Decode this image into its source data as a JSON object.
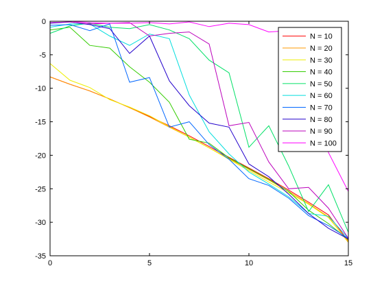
{
  "chart_data": {
    "type": "line",
    "title": "",
    "xlabel": "",
    "ylabel": "",
    "xlim": [
      0,
      15
    ],
    "ylim": [
      -35,
      0
    ],
    "xticks": [
      0,
      5,
      10,
      15
    ],
    "yticks": [
      0,
      -5,
      -10,
      -15,
      -20,
      -25,
      -30,
      -35
    ],
    "grid": false,
    "legend_position": "top-right",
    "x": [
      0,
      1,
      2,
      3,
      4,
      5,
      6,
      7,
      8,
      9,
      10,
      11,
      12,
      13,
      14,
      15
    ],
    "series": [
      {
        "name": "N = 10",
        "color": "#ff0000",
        "values": [
          -8.3,
          -9.4,
          -10.4,
          -11.6,
          -12.9,
          -14.2,
          -15.6,
          -17.1,
          -18.7,
          -20.3,
          -21.9,
          -23.5,
          -25.2,
          -27.0,
          -28.9,
          -32.8
        ]
      },
      {
        "name": "N = 20",
        "color": "#ff9900",
        "values": [
          -8.3,
          -9.4,
          -10.4,
          -11.6,
          -12.9,
          -14.3,
          -15.8,
          -17.3,
          -18.9,
          -20.5,
          -22.1,
          -23.7,
          -25.4,
          -27.2,
          -29.2,
          -33.0
        ]
      },
      {
        "name": "N = 30",
        "color": "#eeee00",
        "values": [
          -6.3,
          -8.8,
          -9.9,
          -11.7,
          -12.8,
          -14.1,
          -15.7,
          -17.3,
          -18.9,
          -20.6,
          -22.3,
          -24.0,
          -25.6,
          -27.3,
          -29.3,
          -32.9
        ]
      },
      {
        "name": "N = 40",
        "color": "#33cc00",
        "values": [
          -1.3,
          -0.9,
          -3.6,
          -4.0,
          -6.8,
          -9.1,
          -12.1,
          -17.6,
          -18.2,
          -20.4,
          -22.0,
          -23.6,
          -25.4,
          -28.2,
          -30.2,
          -32.6
        ]
      },
      {
        "name": "N = 50",
        "color": "#00e066",
        "values": [
          -1.8,
          -0.7,
          -0.3,
          -0.9,
          -1.1,
          -0.5,
          -1.3,
          -2.6,
          -5.8,
          -7.7,
          -18.8,
          -15.6,
          -21.6,
          -28.4,
          -24.4,
          -31.5
        ]
      },
      {
        "name": "N = 60",
        "color": "#00dddd",
        "values": [
          -0.9,
          -0.4,
          -0.4,
          -2.2,
          -3.6,
          -1.9,
          -2.6,
          -11.0,
          -16.5,
          -19.8,
          -22.5,
          -24.3,
          -26.2,
          -28.7,
          -29.1,
          -32.4
        ]
      },
      {
        "name": "N = 70",
        "color": "#0066ff",
        "values": [
          -0.6,
          -0.5,
          -1.4,
          -0.4,
          -9.1,
          -8.4,
          -15.8,
          -15.0,
          -18.4,
          -20.6,
          -23.5,
          -24.5,
          -26.4,
          -29.0,
          -30.5,
          -32.4
        ]
      },
      {
        "name": "N = 80",
        "color": "#2200cc",
        "values": [
          -0.3,
          -0.1,
          -0.5,
          -1.1,
          -4.8,
          -2.2,
          -8.9,
          -12.6,
          -15.2,
          -15.8,
          -21.3,
          -23.2,
          -25.8,
          -28.7,
          -30.9,
          -32.5
        ]
      },
      {
        "name": "N = 90",
        "color": "#bb00bb",
        "values": [
          -0.2,
          -0.1,
          -0.4,
          -0.3,
          -0.2,
          -2.2,
          -1.8,
          -1.6,
          -3.4,
          -15.6,
          -15.1,
          -21.0,
          -25.0,
          -24.8,
          -27.9,
          -32.4
        ]
      },
      {
        "name": "N = 100",
        "color": "#ff00ff",
        "values": [
          0.0,
          0.0,
          -0.2,
          -0.3,
          -0.3,
          -0.2,
          -0.4,
          -0.1,
          -0.8,
          -0.3,
          -0.5,
          -1.6,
          -1.4,
          -1.5,
          -19.6,
          -25.4
        ]
      }
    ]
  }
}
